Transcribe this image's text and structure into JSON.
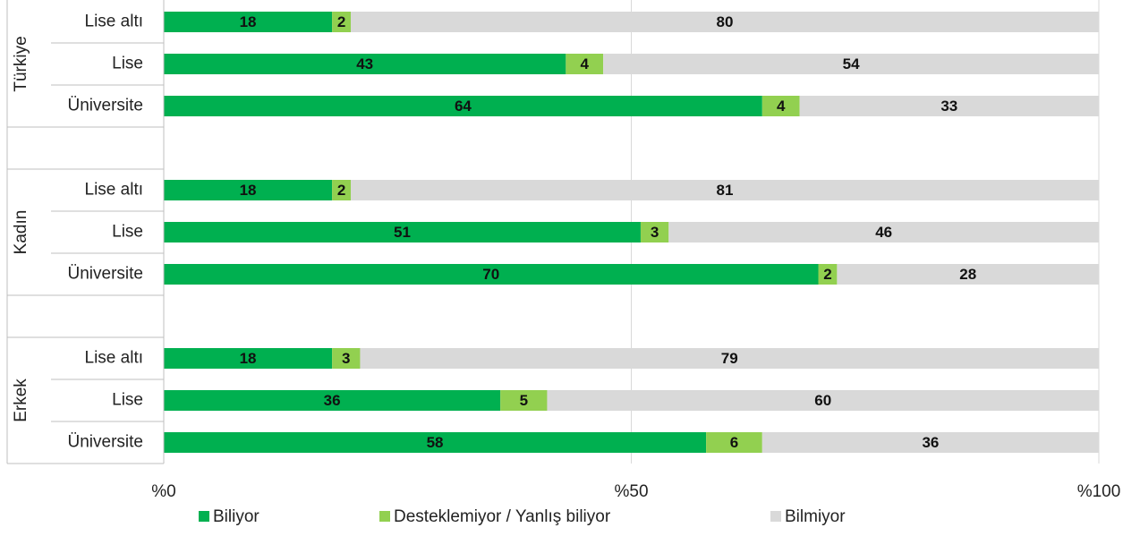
{
  "chart_data": {
    "type": "stacked-barh",
    "groups": [
      "Türkiye",
      "Kadın",
      "Erkek"
    ],
    "categories": [
      "Lise altı",
      "Lise",
      "Üniversite",
      "Lise altı",
      "Lise",
      "Üniversite",
      "Lise altı",
      "Lise",
      "Üniversite"
    ],
    "series": [
      {
        "name": "Biliyor",
        "color": "#00b050",
        "values": [
          18,
          43,
          64,
          18,
          51,
          70,
          18,
          36,
          58
        ]
      },
      {
        "name": "Desteklemiyor / Yanlış biliyor",
        "color": "#92d050",
        "values": [
          2,
          4,
          4,
          2,
          3,
          2,
          3,
          5,
          6
        ]
      },
      {
        "name": "Bilmiyor",
        "color": "#d9d9d9",
        "values": [
          80,
          54,
          33,
          81,
          46,
          28,
          79,
          60,
          36
        ]
      }
    ],
    "xlim": [
      0,
      100
    ],
    "xticks": [
      {
        "value": 0,
        "label": "%0"
      },
      {
        "value": 50,
        "label": "%50"
      },
      {
        "value": 100,
        "label": "%100"
      }
    ],
    "grid": true,
    "legend": "bottom"
  }
}
